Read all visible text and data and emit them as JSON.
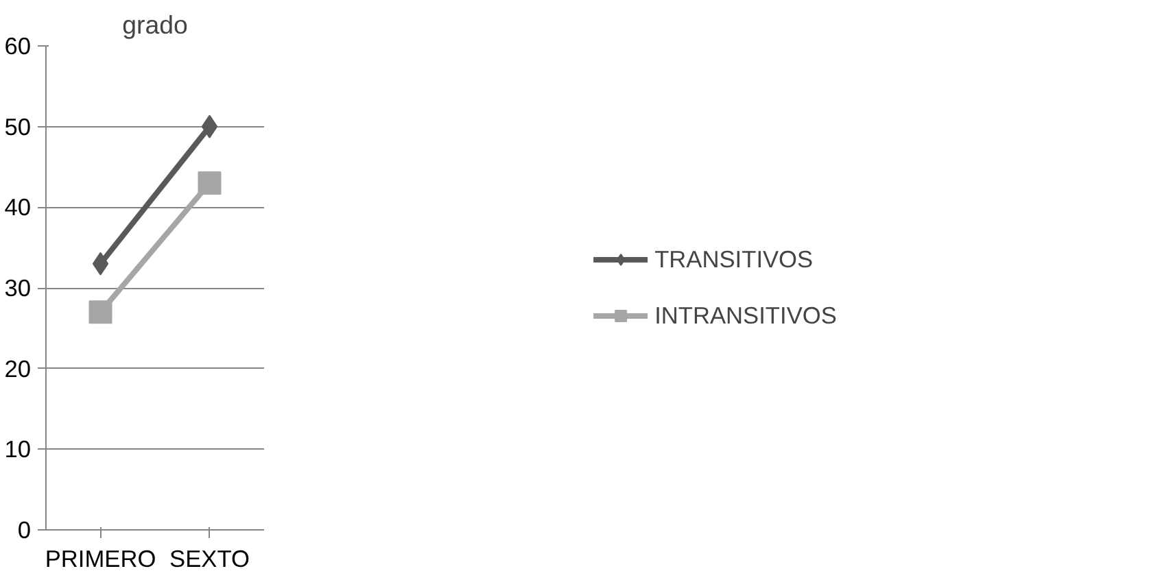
{
  "chart_data": {
    "type": "line",
    "title": "grado",
    "categories": [
      "PRIMERO",
      "SEXTO"
    ],
    "series": [
      {
        "name": "TRANSITIVOS",
        "color": "#595959",
        "values": [
          33,
          50
        ],
        "marker": "diamond"
      },
      {
        "name": "INTRANSITIVOS",
        "color": "#a6a6a6",
        "values": [
          27,
          43
        ],
        "marker": "square"
      }
    ],
    "ylim": [
      0,
      60
    ],
    "yticks": [
      0,
      10,
      20,
      30,
      40,
      50,
      60
    ],
    "grid": "y",
    "legend": "right"
  }
}
